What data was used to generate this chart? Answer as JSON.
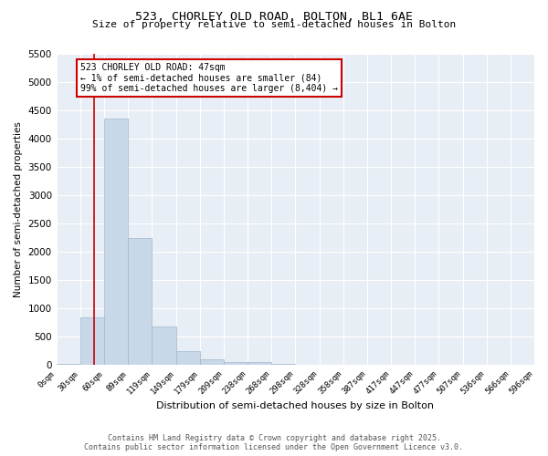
{
  "title1": "523, CHORLEY OLD ROAD, BOLTON, BL1 6AE",
  "title2": "Size of property relative to semi-detached houses in Bolton",
  "xlabel": "Distribution of semi-detached houses by size in Bolton",
  "ylabel": "Number of semi-detached properties",
  "bin_labels": [
    "0sqm",
    "30sqm",
    "60sqm",
    "89sqm",
    "119sqm",
    "149sqm",
    "179sqm",
    "209sqm",
    "238sqm",
    "268sqm",
    "298sqm",
    "328sqm",
    "358sqm",
    "387sqm",
    "417sqm",
    "447sqm",
    "477sqm",
    "507sqm",
    "536sqm",
    "566sqm",
    "596sqm"
  ],
  "bar_heights": [
    30,
    850,
    4350,
    2250,
    680,
    250,
    110,
    60,
    50,
    30,
    0,
    0,
    0,
    0,
    0,
    0,
    0,
    0,
    0,
    0
  ],
  "bar_color": "#c8d8e8",
  "bar_edge_color": "#a0b8cc",
  "vline_x": 1.57,
  "vline_color": "#cc0000",
  "annotation_text": "523 CHORLEY OLD ROAD: 47sqm\n← 1% of semi-detached houses are smaller (84)\n99% of semi-detached houses are larger (8,404) →",
  "annotation_box_color": "#ffffff",
  "annotation_box_edge": "#cc0000",
  "ylim": [
    0,
    5500
  ],
  "yticks": [
    0,
    500,
    1000,
    1500,
    2000,
    2500,
    3000,
    3500,
    4000,
    4500,
    5000,
    5500
  ],
  "footer1": "Contains HM Land Registry data © Crown copyright and database right 2025.",
  "footer2": "Contains public sector information licensed under the Open Government Licence v3.0.",
  "background_color": "#ffffff",
  "plot_background": "#e8eef5",
  "grid_color": "#ffffff"
}
